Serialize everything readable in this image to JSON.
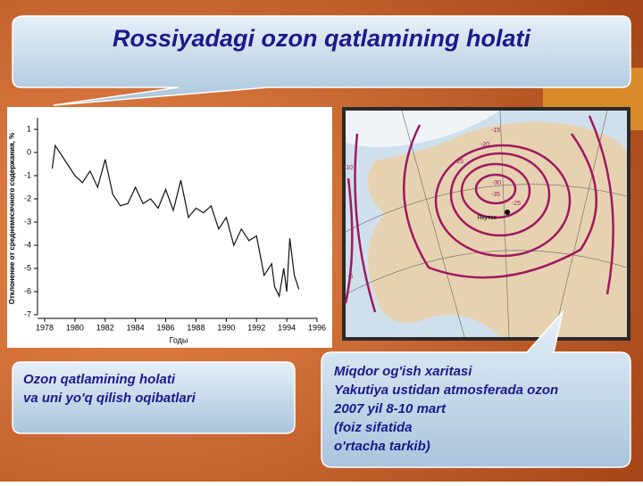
{
  "title": "Rossiyadagi ozon qatlamining holati",
  "chart_data": {
    "type": "line",
    "ylabel": "Отклонение от среднемесячного содержания, %",
    "xlabel": "Годы",
    "x": [
      1978.5,
      1978.7,
      1979,
      1979.5,
      1980,
      1980.5,
      1981,
      1981.5,
      1982,
      1982.5,
      1983,
      1983.5,
      1984,
      1984.5,
      1985,
      1985.5,
      1986,
      1986.5,
      1987,
      1987.5,
      1988,
      1988.5,
      1989,
      1989.5,
      1990,
      1990.5,
      1991,
      1991.5,
      1992,
      1992.5,
      1993,
      1993.2,
      1993.5,
      1993.8,
      1994,
      1994.2,
      1994.5,
      1994.8
    ],
    "series": [
      {
        "color": "#111111",
        "values": [
          -0.7,
          0.3,
          0,
          -0.5,
          -1,
          -1.3,
          -0.8,
          -1.5,
          -0.3,
          -1.8,
          -2.3,
          -2.2,
          -1.5,
          -2.2,
          -2,
          -2.4,
          -1.6,
          -2.5,
          -1.2,
          -2.8,
          -2.4,
          -2.6,
          -2.3,
          -3.3,
          -2.8,
          -4,
          -3.3,
          -3.8,
          -3.6,
          -5.3,
          -4.8,
          -5.8,
          -6.2,
          -5,
          -6,
          -3.7,
          -5.3,
          -5.9
        ]
      }
    ],
    "xlim": [
      1977,
      1996
    ],
    "ylim": [
      -7,
      1.5
    ],
    "xticks": [
      1978,
      1980,
      1982,
      1984,
      1986,
      1988,
      1990,
      1992,
      1994,
      1996
    ],
    "yticks": [
      1,
      0,
      -1,
      -2,
      -3,
      -4,
      -5,
      -6,
      -7
    ]
  },
  "map": {
    "labels": [
      "-15",
      "-20",
      "-25",
      "-30",
      "-35",
      "-25",
      "-10",
      "-5",
      "Якутск"
    ]
  },
  "caption_left": [
    "Ozon qatlamining holati",
    "va uni yo'q qilish oqibatlari"
  ],
  "caption_right": [
    "Miqdor og'ish xaritasi",
    "Yakutiya ustidan atmosferada ozon",
    "2007 yil 8-10 mart",
    "(foiz sifatida",
    "o'rtacha tarkib)"
  ]
}
